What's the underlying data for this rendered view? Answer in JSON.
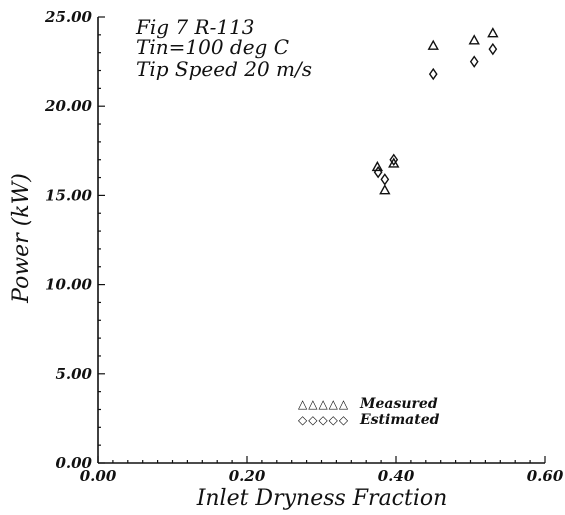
{
  "chart_data": {
    "type": "scatter",
    "title_lines": [
      "Fig 7 R-113",
      "Tin=100 deg C",
      "Tip Speed 20 m/s"
    ],
    "xlabel": "Inlet Dryness Fraction",
    "ylabel": "Power (kW)",
    "xlim": [
      0.0,
      0.6
    ],
    "ylim": [
      0.0,
      25.0
    ],
    "x_ticks": [
      "0.00",
      "0.20",
      "0.40",
      "0.60"
    ],
    "y_ticks": [
      "0.00",
      "5.00",
      "10.00",
      "15.00",
      "20.00",
      "25.00"
    ],
    "grid": false,
    "legend_position": "lower-center",
    "series": [
      {
        "name": "Measured",
        "marker": "triangle",
        "legend_marks": "△△△△△",
        "points": [
          {
            "x": 0.375,
            "y": 16.6
          },
          {
            "x": 0.385,
            "y": 15.3
          },
          {
            "x": 0.397,
            "y": 16.8
          },
          {
            "x": 0.45,
            "y": 23.4
          },
          {
            "x": 0.505,
            "y": 23.7
          },
          {
            "x": 0.53,
            "y": 24.1
          }
        ]
      },
      {
        "name": "Estimated",
        "marker": "diamond",
        "legend_marks": "◇◇◇◇◇",
        "points": [
          {
            "x": 0.376,
            "y": 16.3
          },
          {
            "x": 0.385,
            "y": 15.9
          },
          {
            "x": 0.397,
            "y": 17.0
          },
          {
            "x": 0.45,
            "y": 21.8
          },
          {
            "x": 0.505,
            "y": 22.5
          },
          {
            "x": 0.53,
            "y": 23.2
          }
        ]
      }
    ]
  }
}
